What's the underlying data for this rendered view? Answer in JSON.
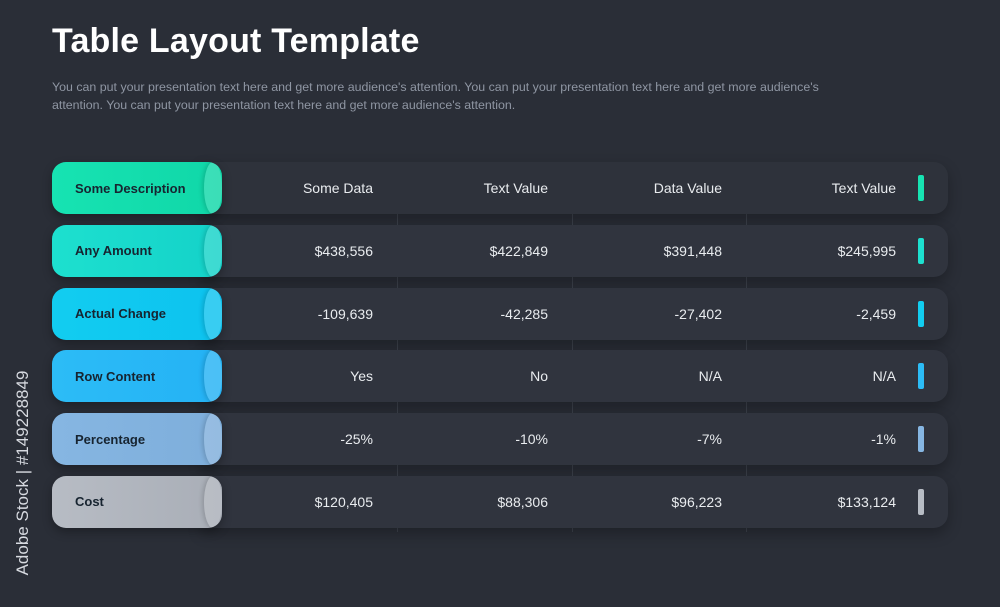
{
  "title": "Table Layout Template",
  "subtitle": "You can put your presentation text here and get more audience's attention. You can put your presentation text here and get more audience's attention. You can put your presentation text here and get more audience's attention.",
  "watermark": "Adobe Stock | #149228849",
  "table": {
    "header": {
      "label": "Some Description",
      "cells": [
        "Some Data",
        "Text Value",
        "Data Value",
        "Text Value"
      ],
      "color": "#17e3b2",
      "color2": "#10d7a8",
      "accent": "#17e3b2"
    },
    "rows": [
      {
        "label": "Any Amount",
        "cells": [
          "$438,556",
          "$422,849",
          "$391,448",
          "$245,995"
        ],
        "color": "#1de0cf",
        "color2": "#14d2c9",
        "accent": "#1de0cf"
      },
      {
        "label": "Actual Change",
        "cells": [
          "-109,639",
          "-42,285",
          "-27,402",
          "-2,459"
        ],
        "color": "#12cdf0",
        "color2": "#0dc2ef",
        "accent": "#12cdf0"
      },
      {
        "label": "Row Content",
        "cells": [
          "Yes",
          "No",
          "N/A",
          "N/A"
        ],
        "color": "#2cbcf6",
        "color2": "#24b2f5",
        "accent": "#2cbcf6"
      },
      {
        "label": "Percentage",
        "cells": [
          "-25%",
          "-10%",
          "-7%",
          "-1%"
        ],
        "color": "#86b6e2",
        "color2": "#7eaedb",
        "accent": "#86b6e2"
      },
      {
        "label": "Cost",
        "cells": [
          "$120,405",
          "$88,306",
          "$96,223",
          "$133,124"
        ],
        "color": "#b7bcc4",
        "color2": "#a9aeb7",
        "accent": "#b7bcc4"
      }
    ]
  }
}
